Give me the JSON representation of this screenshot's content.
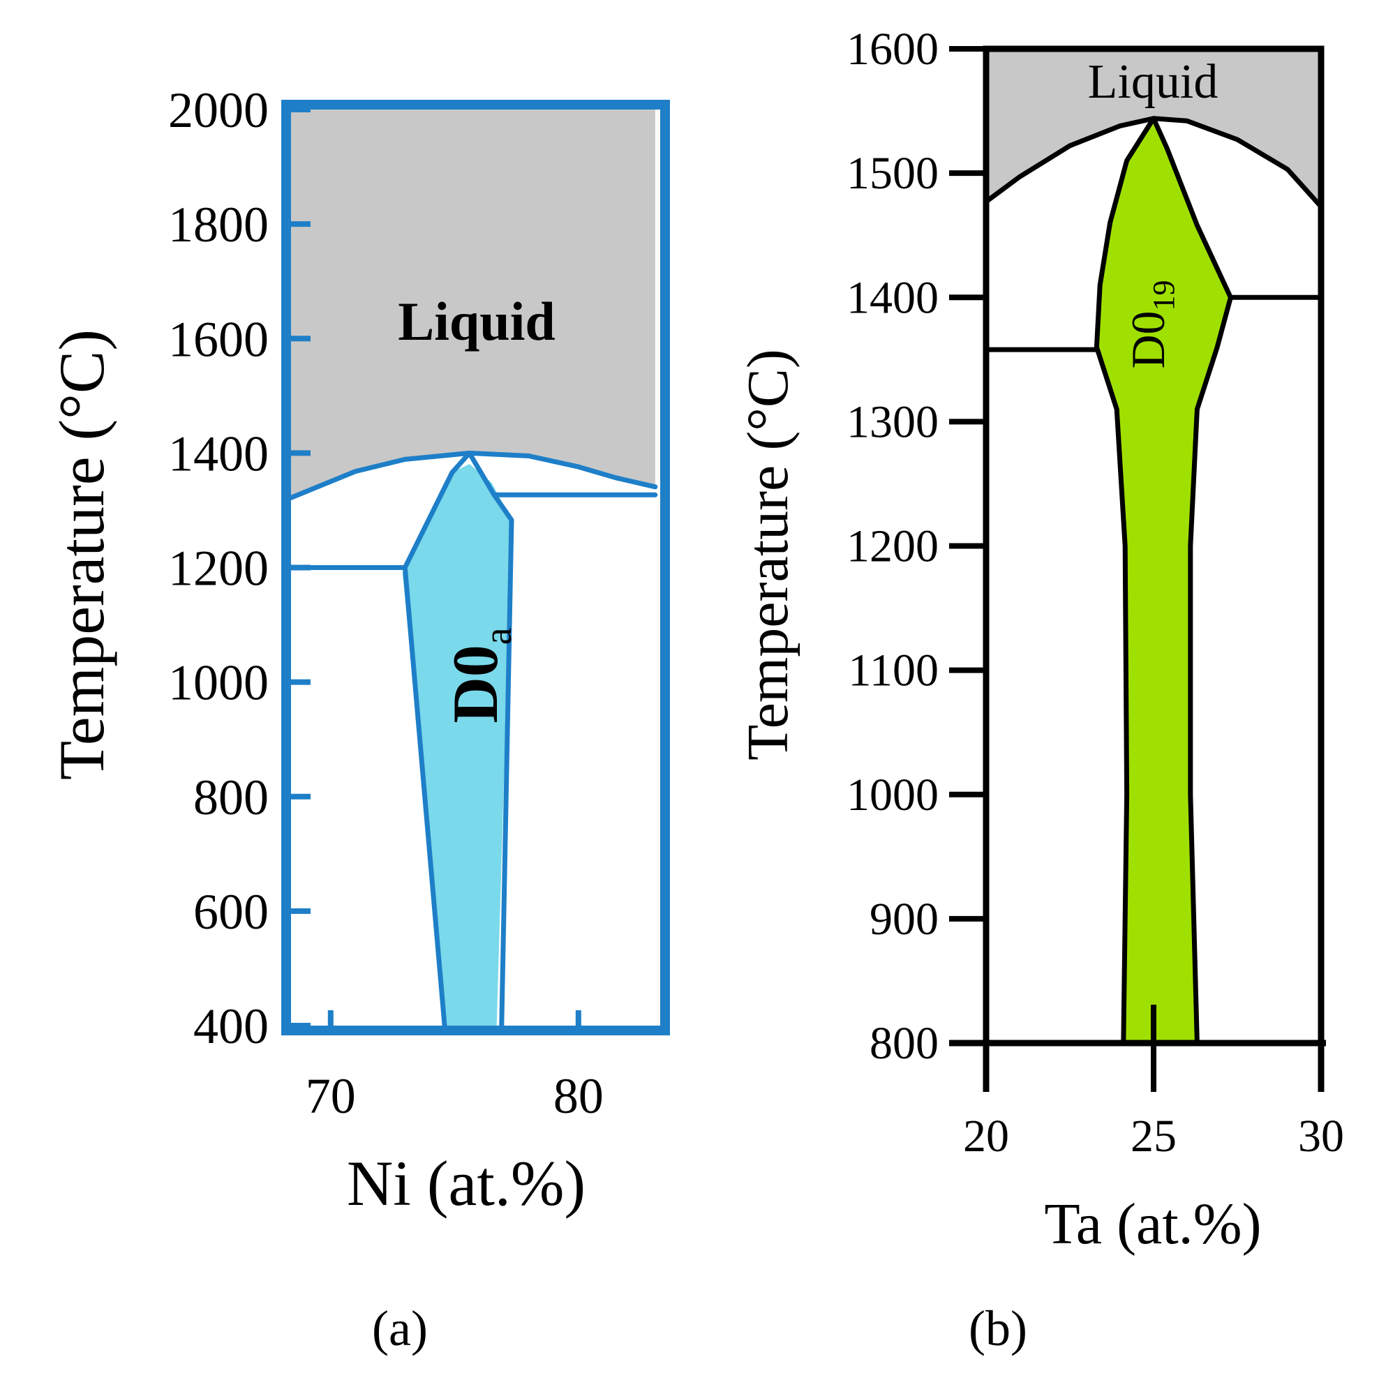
{
  "chart_data": [
    {
      "type": "area",
      "subtitle": "(a)",
      "xlabel": "Ni (at.%)",
      "ylabel": "Temperature (°C)",
      "xlim": [
        68.4,
        83.3
      ],
      "ylim": [
        400,
        2000
      ],
      "x_ticks": [
        "70",
        "80"
      ],
      "y_ticks": [
        "400",
        "600",
        "800",
        "1000",
        "1200",
        "1400",
        "1600",
        "1800",
        "2000"
      ],
      "frame_color": "#1e7fc8",
      "regions": [
        {
          "name": "Liquid",
          "color": "#c8c8c8",
          "points": [
            [
              68.4,
              1322
            ],
            [
              71.0,
              1368
            ],
            [
              73.0,
              1389
            ],
            [
              75.6,
              1400
            ],
            [
              78.0,
              1395
            ],
            [
              80.0,
              1376
            ],
            [
              81.5,
              1357
            ],
            [
              83.1,
              1341
            ],
            [
              83.1,
              2000
            ],
            [
              68.4,
              2000
            ]
          ]
        },
        {
          "name": "D0a",
          "color": "#7ad9ea",
          "points": [
            [
              75.6,
              1381
            ],
            [
              76.5,
              1348
            ],
            [
              77.3,
              1283
            ],
            [
              76.7,
              400
            ],
            [
              74.7,
              400
            ],
            [
              72.9,
              1190
            ],
            [
              73.2,
              1218
            ],
            [
              74.9,
              1366
            ]
          ]
        }
      ],
      "lines": [
        {
          "name": "liquidus",
          "points": [
            [
              68.4,
              1322
            ],
            [
              71.0,
              1368
            ],
            [
              73.0,
              1389
            ],
            [
              75.6,
              1400
            ],
            [
              78.0,
              1395
            ],
            [
              80.0,
              1376
            ],
            [
              81.5,
              1357
            ],
            [
              83.1,
              1341
            ]
          ]
        },
        {
          "name": "D0a-left-boundary",
          "points": [
            [
              75.6,
              1400
            ],
            [
              74.9,
              1366
            ],
            [
              73.0,
              1200
            ],
            [
              74.6,
              400
            ]
          ]
        },
        {
          "name": "D0a-right-boundary",
          "points": [
            [
              75.6,
              1400
            ],
            [
              76.6,
              1327
            ],
            [
              77.3,
              1283
            ],
            [
              76.9,
              400
            ]
          ]
        },
        {
          "name": "left-plateau",
          "points": [
            [
              68.4,
              1200
            ],
            [
              73.0,
              1200
            ]
          ]
        },
        {
          "name": "right-plateau",
          "points": [
            [
              76.6,
              1327
            ],
            [
              83.1,
              1327
            ]
          ]
        }
      ],
      "labels": [
        {
          "text": "Liquid",
          "x": 75.6,
          "y": 1600
        },
        {
          "text": "D0",
          "subscript": "a",
          "x": 75.7,
          "y": 1095
        }
      ]
    },
    {
      "type": "area",
      "subtitle": "(b)",
      "xlabel": "Ta (at.%)",
      "ylabel": "Temperature (°C)",
      "xlim": [
        20,
        30
      ],
      "ylim": [
        800,
        1600
      ],
      "x_ticks": [
        "20",
        "25",
        "30"
      ],
      "y_ticks": [
        "800",
        "900",
        "1000",
        "1100",
        "1200",
        "1300",
        "1400",
        "1500",
        "1600"
      ],
      "frame_color": "#000000",
      "regions": [
        {
          "name": "Liquid",
          "color": "#c8c8c8",
          "points": [
            [
              20,
              1477
            ],
            [
              21,
              1497
            ],
            [
              22.5,
              1522
            ],
            [
              24,
              1538
            ],
            [
              25,
              1544
            ],
            [
              26,
              1542
            ],
            [
              27.5,
              1527
            ],
            [
              29,
              1503
            ],
            [
              30,
              1473
            ],
            [
              30,
              1600
            ],
            [
              20,
              1600
            ]
          ]
        },
        {
          "name": "D0₁₉",
          "color": "#a0e000",
          "points": [
            [
              25,
              1544
            ],
            [
              25.4,
              1520
            ],
            [
              26.3,
              1458
            ],
            [
              27.3,
              1400
            ],
            [
              26.9,
              1360
            ],
            [
              26.3,
              1310
            ],
            [
              26.1,
              1200
            ],
            [
              26.1,
              1000
            ],
            [
              26.3,
              800
            ],
            [
              24.1,
              800
            ],
            [
              24.2,
              1000
            ],
            [
              24.15,
              1200
            ],
            [
              23.9,
              1310
            ],
            [
              23.3,
              1360
            ],
            [
              23.4,
              1410
            ],
            [
              23.7,
              1460
            ],
            [
              24.2,
              1510
            ]
          ]
        }
      ],
      "lines": [
        {
          "name": "liquidus",
          "points": [
            [
              20,
              1477
            ],
            [
              21,
              1497
            ],
            [
              22.5,
              1522
            ],
            [
              24,
              1538
            ],
            [
              25,
              1544
            ],
            [
              26,
              1542
            ],
            [
              27.5,
              1527
            ],
            [
              29,
              1503
            ],
            [
              30,
              1473
            ]
          ]
        },
        {
          "name": "D0₁₉-left-boundary",
          "points": [
            [
              25,
              1544
            ],
            [
              24.2,
              1510
            ],
            [
              23.7,
              1460
            ],
            [
              23.4,
              1410
            ],
            [
              23.3,
              1360
            ],
            [
              23.6,
              1335
            ],
            [
              23.9,
              1310
            ],
            [
              24.15,
              1200
            ],
            [
              24.2,
              1000
            ],
            [
              24.1,
              800
            ]
          ]
        },
        {
          "name": "D0₁₉-right-boundary",
          "points": [
            [
              25,
              1544
            ],
            [
              25.4,
              1520
            ],
            [
              26.3,
              1458
            ],
            [
              27.3,
              1400
            ],
            [
              26.9,
              1360
            ],
            [
              26.3,
              1310
            ],
            [
              26.1,
              1200
            ],
            [
              26.1,
              1000
            ],
            [
              26.3,
              800
            ]
          ]
        },
        {
          "name": "left-plateau",
          "points": [
            [
              20,
              1358
            ],
            [
              23.3,
              1358
            ]
          ]
        },
        {
          "name": "right-plateau",
          "points": [
            [
              27.3,
              1400
            ],
            [
              30,
              1400
            ]
          ]
        }
      ],
      "labels": [
        {
          "text": "Liquid",
          "x": 25,
          "y": 1576
        },
        {
          "text": "D0",
          "subscript": "19",
          "x": 25,
          "y": 1355
        }
      ]
    }
  ]
}
